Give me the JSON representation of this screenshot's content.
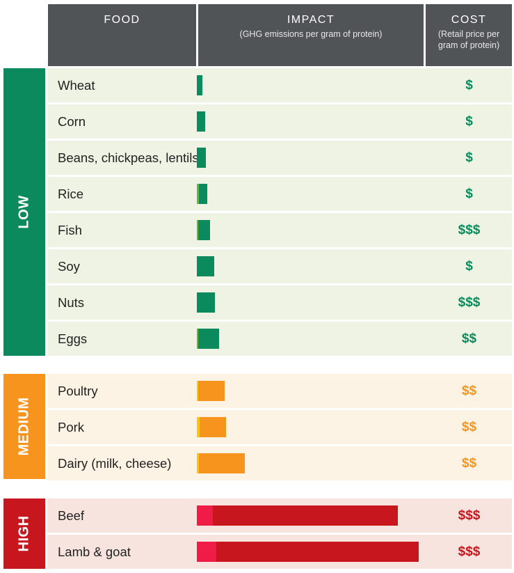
{
  "header": {
    "food": "FOOD",
    "impact": "IMPACT",
    "impact_sub": "(GHG emissions per gram of protein)",
    "cost": "COST",
    "cost_sub": "(Retail price per gram of protein)"
  },
  "colors": {
    "header_bg": "#505456",
    "low": "#0b8a5e",
    "low_light": "#6cb33e",
    "low_row": "#eef3e4",
    "medium": "#f7941d",
    "medium_light": "#fcc216",
    "medium_row": "#fdf3e4",
    "high": "#c8161e",
    "high_light": "#ef1c48",
    "high_row": "#f7e4df"
  },
  "groups": [
    {
      "label": "LOW",
      "key": "low"
    },
    {
      "label": "MEDIUM",
      "key": "medium"
    },
    {
      "label": "HIGH",
      "key": "high"
    }
  ],
  "chart_data": {
    "type": "bar",
    "title": "",
    "xlabel": "IMPACT (GHG emissions per gram of protein)",
    "ylabel": "FOOD",
    "units": "relative",
    "categories": [
      "Wheat",
      "Corn",
      "Beans, chickpeas, lentils",
      "Rice",
      "Fish",
      "Soy",
      "Nuts",
      "Eggs",
      "Poultry",
      "Pork",
      "Dairy (milk, cheese)",
      "Beef",
      "Lamb & goat"
    ],
    "group": [
      "low",
      "low",
      "low",
      "low",
      "low",
      "low",
      "low",
      "low",
      "medium",
      "medium",
      "medium",
      "high",
      "high"
    ],
    "series": [
      {
        "values": [
          0,
          0,
          0,
          3,
          2,
          0,
          0,
          2,
          2,
          4,
          3,
          23,
          28
        ]
      },
      {
        "values": [
          8,
          12,
          13,
          12,
          17,
          25,
          26,
          30,
          38,
          38,
          66,
          266,
          291
        ]
      }
    ],
    "cost": [
      "$",
      "$",
      "$",
      "$",
      "$$$",
      "$",
      "$$$",
      "$$",
      "$$",
      "$$",
      "$$",
      "$$$",
      "$$$"
    ],
    "xlim": [
      0,
      320
    ]
  }
}
